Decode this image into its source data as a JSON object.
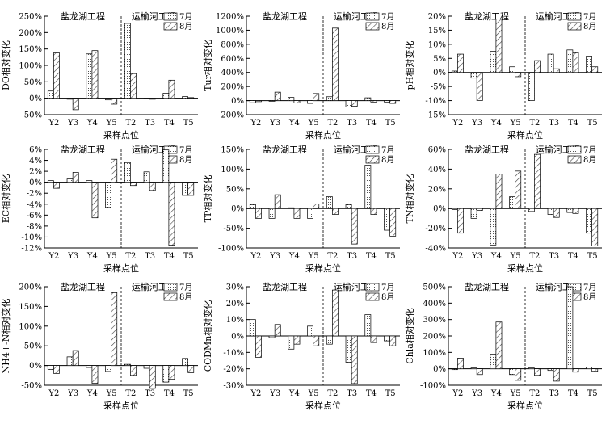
{
  "legend": {
    "series1": "7月",
    "series2": "8月"
  },
  "headers": {
    "left": "盐龙湖工程",
    "right": "运榆河工程"
  },
  "xlabel": "采样点位",
  "colors": {
    "axis": "#000000",
    "bar_fill": "#ffffff",
    "pattern_line": "#444444",
    "divider": "#000000"
  },
  "chart_data": [
    {
      "type": "bar",
      "ylabel": "DO相对变化",
      "categories": [
        "Y2",
        "Y3",
        "Y4",
        "Y5",
        "T2",
        "T3",
        "T4",
        "T5"
      ],
      "ylim": [
        -50,
        250
      ],
      "yticks": [
        -50,
        0,
        50,
        100,
        150,
        200,
        250
      ],
      "tick_suffix": "%",
      "series": [
        {
          "name": "7月",
          "values": [
            22,
            -3,
            135,
            -5,
            228,
            -1,
            15,
            5
          ]
        },
        {
          "name": "8月",
          "values": [
            138,
            -35,
            145,
            -18,
            75,
            -3,
            55,
            2
          ]
        }
      ]
    },
    {
      "type": "bar",
      "ylabel": "Tur相对变化",
      "categories": [
        "Y2",
        "Y3",
        "Y4",
        "Y5",
        "T2",
        "T3",
        "T4",
        "T5"
      ],
      "ylim": [
        -200,
        1200
      ],
      "yticks": [
        -200,
        0,
        200,
        400,
        600,
        800,
        1000,
        1200
      ],
      "tick_suffix": "%",
      "series": [
        {
          "name": "7月",
          "values": [
            -30,
            -5,
            45,
            -40,
            55,
            -90,
            40,
            -20
          ]
        },
        {
          "name": "8月",
          "values": [
            -15,
            120,
            -35,
            100,
            1030,
            -80,
            -20,
            -40
          ]
        }
      ]
    },
    {
      "type": "bar",
      "ylabel": "pH相对变化",
      "categories": [
        "Y2",
        "Y3",
        "Y4",
        "Y5",
        "T2",
        "T3",
        "T4",
        "T5"
      ],
      "ylim": [
        -15,
        20
      ],
      "yticks": [
        -15,
        -10,
        -5,
        0,
        5,
        10,
        15,
        20
      ],
      "tick_suffix": "%",
      "series": [
        {
          "name": "7月",
          "values": [
            0.5,
            -2,
            7.5,
            2,
            -10,
            6.5,
            8,
            5.8
          ]
        },
        {
          "name": "8月",
          "values": [
            6.5,
            -10,
            19,
            -1.5,
            4.2,
            1.3,
            7,
            2
          ]
        }
      ]
    },
    {
      "type": "bar",
      "ylabel": "EC相对变化",
      "categories": [
        "Y2",
        "Y3",
        "Y4",
        "Y5",
        "T2",
        "T3",
        "T4",
        "T5"
      ],
      "ylim": [
        -12,
        6
      ],
      "yticks": [
        -12,
        -10,
        -8,
        -6,
        -4,
        -2,
        0,
        2,
        4,
        6
      ],
      "tick_suffix": "%",
      "series": [
        {
          "name": "7月",
          "values": [
            0.3,
            0.6,
            0.3,
            -4.6,
            3.6,
            1.9,
            5.9,
            -2.4
          ]
        },
        {
          "name": "8月",
          "values": [
            -1.1,
            1.8,
            -6.5,
            4.2,
            -0.6,
            -1.5,
            -11.5,
            -2.4
          ]
        }
      ]
    },
    {
      "type": "bar",
      "ylabel": "TP相对变化",
      "categories": [
        "Y2",
        "Y3",
        "Y4",
        "Y5",
        "T2",
        "T3",
        "T4",
        "T5"
      ],
      "ylim": [
        -100,
        150
      ],
      "yticks": [
        -100,
        -50,
        0,
        50,
        100,
        150
      ],
      "tick_suffix": "%",
      "series": [
        {
          "name": "7月",
          "values": [
            10,
            -25,
            2,
            -25,
            30,
            10,
            110,
            -55
          ]
        },
        {
          "name": "8月",
          "values": [
            -25,
            35,
            -25,
            12,
            -15,
            -90,
            -15,
            -70
          ]
        }
      ]
    },
    {
      "type": "bar",
      "ylabel": "TN相对变化",
      "categories": [
        "Y2",
        "Y3",
        "Y4",
        "Y5",
        "T2",
        "T3",
        "T4",
        "T5"
      ],
      "ylim": [
        -40,
        60
      ],
      "yticks": [
        -40,
        -20,
        0,
        20,
        40,
        60
      ],
      "tick_suffix": "%",
      "series": [
        {
          "name": "7月",
          "values": [
            -1,
            -10,
            -37,
            12,
            -3,
            -6,
            -4,
            -25
          ]
        },
        {
          "name": "8月",
          "values": [
            -25,
            -2,
            35,
            38,
            55,
            -9,
            -5,
            -38
          ]
        }
      ]
    },
    {
      "type": "bar",
      "ylabel": "NH4+-N相对变化",
      "categories": [
        "Y2",
        "Y3",
        "Y4",
        "Y5",
        "T2",
        "T3",
        "T4",
        "T5"
      ],
      "ylim": [
        -50,
        200
      ],
      "yticks": [
        -50,
        0,
        50,
        100,
        150,
        200
      ],
      "tick_suffix": "%",
      "series": [
        {
          "name": "7月",
          "values": [
            -10,
            22,
            -5,
            -15,
            3,
            -7,
            -42,
            18
          ]
        },
        {
          "name": "8月",
          "values": [
            -20,
            38,
            -45,
            185,
            -25,
            -58,
            -35,
            -18
          ]
        }
      ]
    },
    {
      "type": "bar",
      "ylabel": "CODMn相对变化",
      "categories": [
        "Y2",
        "Y3",
        "Y4",
        "Y5",
        "T2",
        "T3",
        "T4",
        "T5"
      ],
      "ylim": [
        -30,
        30
      ],
      "yticks": [
        -30,
        -20,
        -10,
        0,
        10,
        20,
        30
      ],
      "tick_suffix": "%",
      "series": [
        {
          "name": "7月",
          "values": [
            10,
            -1,
            -8,
            6,
            -5,
            -16,
            13,
            -3
          ]
        },
        {
          "name": "8月",
          "values": [
            -13,
            7,
            -5,
            -6,
            28,
            -29,
            -4,
            -6
          ]
        }
      ]
    },
    {
      "type": "bar",
      "ylabel": "Chla相对变化",
      "categories": [
        "Y2",
        "Y3",
        "Y4",
        "Y5",
        "T2",
        "T3",
        "T4",
        "T5"
      ],
      "ylim": [
        -100,
        500
      ],
      "yticks": [
        -100,
        0,
        100,
        200,
        300,
        400,
        500
      ],
      "tick_suffix": "%",
      "series": [
        {
          "name": "7月",
          "values": [
            -5,
            5,
            90,
            -35,
            5,
            -10,
            500,
            10
          ]
        },
        {
          "name": "8月",
          "values": [
            65,
            -35,
            285,
            -70,
            -40,
            -75,
            -20,
            -15
          ]
        }
      ]
    }
  ]
}
